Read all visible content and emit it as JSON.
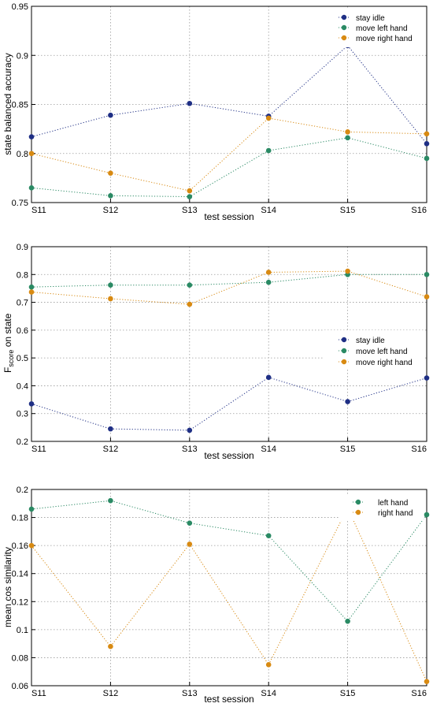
{
  "colors": {
    "stay_idle": "#1f2f85",
    "move_left_hand": "#2a8a64",
    "move_right_hand": "#d88a12",
    "grid": "#9a9a9a",
    "axes": "#000000"
  },
  "chart_data": [
    {
      "type": "line",
      "xlabel": "test session",
      "ylabel": "state balanced accuracy",
      "categories": [
        "S11",
        "S12",
        "S13",
        "S14",
        "S15",
        "S16"
      ],
      "ylim": [
        0.75,
        0.95
      ],
      "yticks": [
        "0.75",
        "0.8",
        "0.85",
        "0.9",
        "0.95"
      ],
      "grid": true,
      "legend_position": "top-right",
      "series": [
        {
          "name": "stay idle",
          "color_key": "stay_idle",
          "values": [
            0.817,
            0.839,
            0.851,
            0.838,
            0.91,
            0.81
          ]
        },
        {
          "name": "move left hand",
          "color_key": "move_left_hand",
          "values": [
            0.765,
            0.757,
            0.756,
            0.803,
            0.816,
            0.795
          ]
        },
        {
          "name": "move right hand",
          "color_key": "move_right_hand",
          "values": [
            0.8,
            0.78,
            0.762,
            0.836,
            0.822,
            0.82
          ]
        }
      ]
    },
    {
      "type": "line",
      "xlabel": "test session",
      "ylabel_main": "F",
      "ylabel_sub": "score",
      "ylabel_rest": " on state",
      "categories": [
        "S11",
        "S12",
        "S13",
        "S14",
        "S15",
        "S16"
      ],
      "ylim": [
        0.2,
        0.9
      ],
      "yticks": [
        "0.2",
        "0.3",
        "0.4",
        "0.5",
        "0.6",
        "0.7",
        "0.8",
        "0.9"
      ],
      "grid": true,
      "legend_position": "right",
      "series": [
        {
          "name": "stay idle",
          "color_key": "stay_idle",
          "values": [
            0.335,
            0.245,
            0.24,
            0.43,
            0.343,
            0.428
          ]
        },
        {
          "name": "move left hand",
          "color_key": "move_left_hand",
          "values": [
            0.755,
            0.762,
            0.762,
            0.772,
            0.8,
            0.8
          ]
        },
        {
          "name": "move right hand",
          "color_key": "move_right_hand",
          "values": [
            0.737,
            0.713,
            0.693,
            0.808,
            0.812,
            0.72
          ]
        }
      ]
    },
    {
      "type": "line",
      "xlabel": "test session",
      "ylabel": "mean cos similarity",
      "categories": [
        "S11",
        "S12",
        "S13",
        "S14",
        "S15",
        "S16"
      ],
      "ylim": [
        0.06,
        0.2
      ],
      "yticks": [
        "0.06",
        "0.08",
        "0.1",
        "0.12",
        "0.14",
        "0.16",
        "0.18",
        "0.2"
      ],
      "grid": true,
      "legend_position": "top-right",
      "series": [
        {
          "name": "left hand",
          "color_key": "move_left_hand",
          "values": [
            0.186,
            0.192,
            0.176,
            0.167,
            0.106,
            0.182
          ]
        },
        {
          "name": "right hand",
          "color_key": "move_right_hand",
          "values": [
            0.16,
            0.088,
            0.161,
            0.075,
            0.187,
            0.063
          ]
        }
      ]
    }
  ]
}
